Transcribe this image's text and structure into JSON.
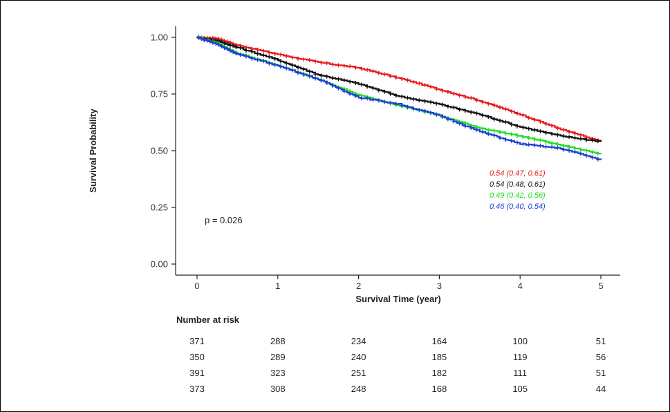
{
  "chart_data": {
    "type": "line",
    "subtype": "kaplan-meier",
    "title": "",
    "xlabel": "Survival Time (year)",
    "ylabel": "Survival Probability",
    "xlim": [
      0,
      5
    ],
    "ylim": [
      0,
      1
    ],
    "x_ticks": [
      "0",
      "1",
      "2",
      "3",
      "4",
      "5"
    ],
    "y_ticks": [
      "0.00",
      "0.25",
      "0.50",
      "0.75",
      "1.00"
    ],
    "grid": false,
    "annotation": "p = 0.026",
    "series": [
      {
        "name": "red",
        "color": "#e41a1c",
        "x": [
          0,
          0.25,
          0.5,
          1.0,
          1.5,
          2.0,
          2.5,
          3.0,
          3.5,
          4.0,
          4.5,
          5.0
        ],
        "y": [
          1.0,
          0.995,
          0.965,
          0.925,
          0.89,
          0.865,
          0.82,
          0.77,
          0.72,
          0.66,
          0.595,
          0.54
        ],
        "ci_label": "0.54 (0.47, 0.61)"
      },
      {
        "name": "black",
        "color": "#111111",
        "x": [
          0,
          0.25,
          0.5,
          1.0,
          1.5,
          2.0,
          2.5,
          3.0,
          3.5,
          4.0,
          4.5,
          5.0
        ],
        "y": [
          1.0,
          0.985,
          0.955,
          0.9,
          0.835,
          0.795,
          0.74,
          0.705,
          0.66,
          0.605,
          0.565,
          0.54
        ],
        "ci_label": "0.54 (0.48, 0.61)"
      },
      {
        "name": "green",
        "color": "#22dd22",
        "x": [
          0,
          0.25,
          0.5,
          1.0,
          1.5,
          2.0,
          2.5,
          3.0,
          3.5,
          4.0,
          4.5,
          5.0
        ],
        "y": [
          1.0,
          0.975,
          0.93,
          0.875,
          0.815,
          0.745,
          0.7,
          0.655,
          0.6,
          0.565,
          0.525,
          0.485
        ],
        "ci_label": "0.49 (0.42, 0.56)"
      },
      {
        "name": "blue",
        "color": "#1a3fd6",
        "x": [
          0,
          0.25,
          0.5,
          1.0,
          1.5,
          2.0,
          2.5,
          3.0,
          3.5,
          4.0,
          4.5,
          5.0
        ],
        "y": [
          1.0,
          0.97,
          0.925,
          0.875,
          0.815,
          0.735,
          0.705,
          0.655,
          0.585,
          0.53,
          0.51,
          0.46
        ],
        "ci_label": "0.46 (0.40, 0.54)"
      }
    ],
    "risk_table": {
      "title": "Number at risk",
      "times": [
        0,
        1,
        2,
        3,
        4,
        5
      ],
      "rows": [
        [
          "371",
          "288",
          "234",
          "164",
          "100",
          "51"
        ],
        [
          "350",
          "289",
          "240",
          "185",
          "119",
          "56"
        ],
        [
          "391",
          "323",
          "251",
          "182",
          "111",
          "51"
        ],
        [
          "373",
          "308",
          "248",
          "168",
          "105",
          "44"
        ]
      ]
    }
  }
}
